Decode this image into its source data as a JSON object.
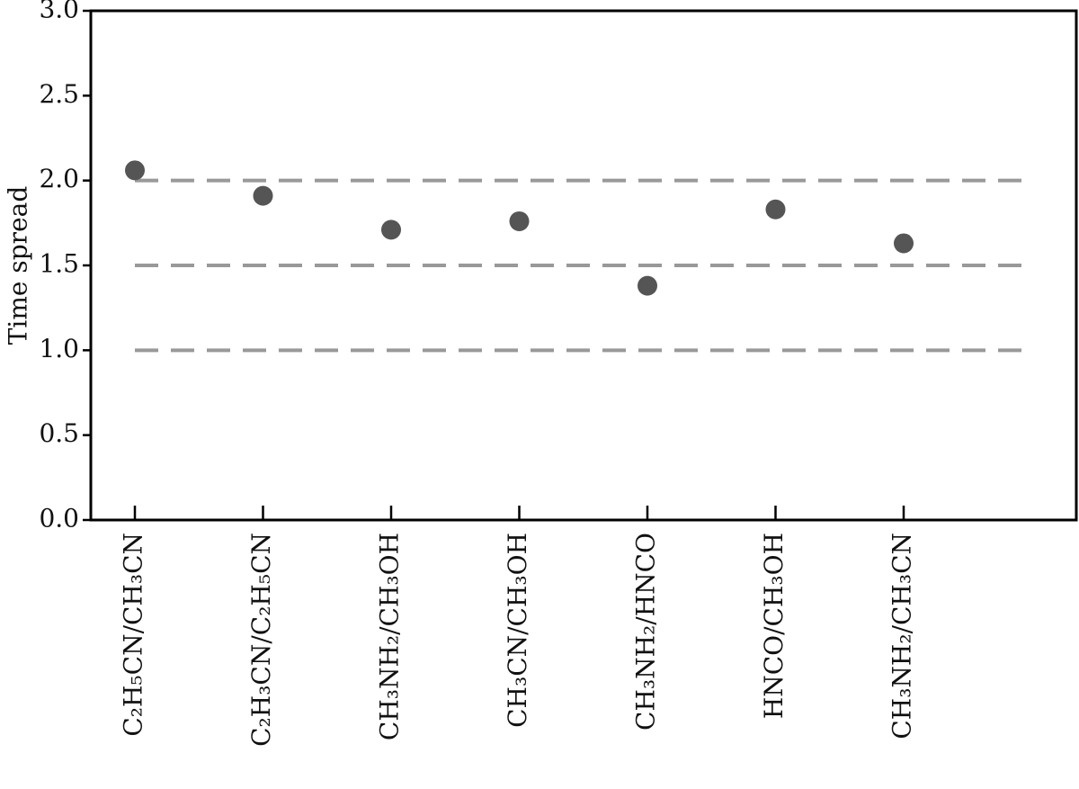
{
  "chart_data": {
    "type": "scatter",
    "y_label": "Time spread",
    "categories": [
      "C₂H₅CN/CH₃CN",
      "C₂H₃CN/C₂H₅CN",
      "CH₃NH₂/CH₃OH",
      "CH₃CN/CH₃OH",
      "CH₃NH₂/HNCO",
      "HNCO/CH₃OH",
      "CH₃NH₂/CH₃CN"
    ],
    "values": [
      2.06,
      1.91,
      1.71,
      1.76,
      1.38,
      1.83,
      1.63
    ],
    "color": "#555555",
    "ylim": [
      0,
      3
    ],
    "yticks": [
      {
        "value": 0,
        "label": "0.0"
      },
      {
        "value": 0.5,
        "label": "0.5"
      },
      {
        "value": 1,
        "label": "1.0"
      },
      {
        "value": 1.5,
        "label": "1.5"
      },
      {
        "value": 2,
        "label": "2.0"
      },
      {
        "value": 2.5,
        "label": "2.5"
      },
      {
        "value": 3,
        "label": "3.0"
      }
    ],
    "reference_lines": [
      1.0,
      1.5,
      2.0
    ],
    "reference_color": "#999999"
  }
}
